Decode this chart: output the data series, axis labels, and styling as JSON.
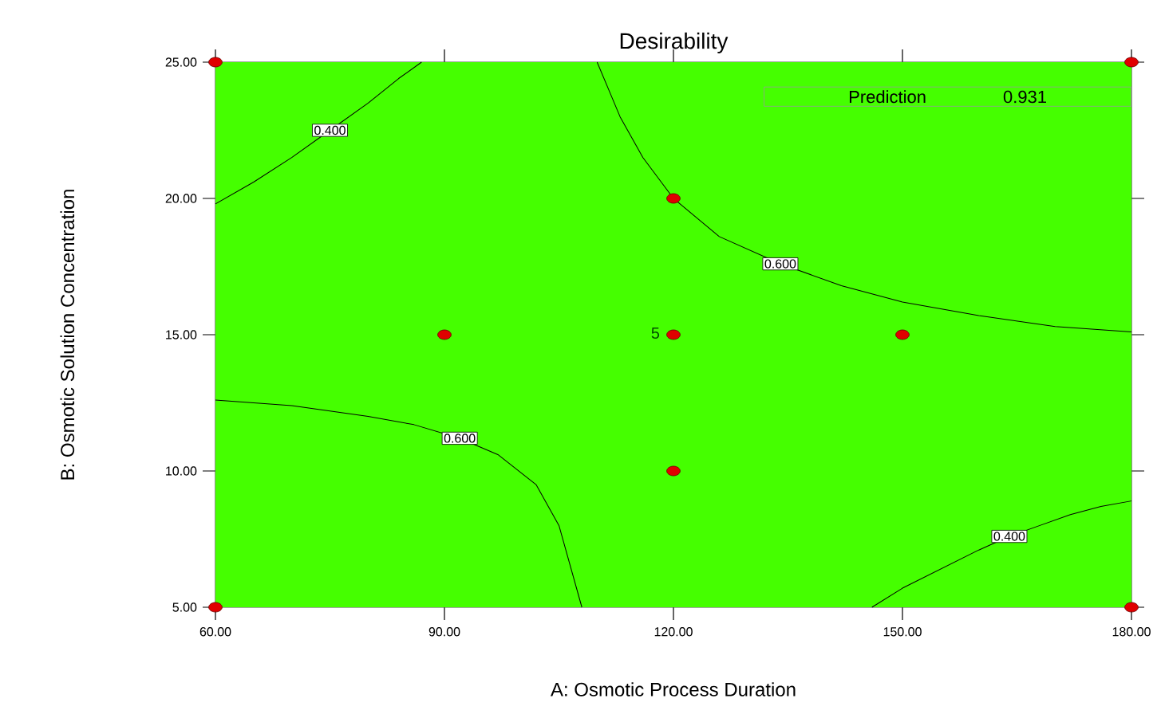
{
  "chart_data": {
    "type": "scatter",
    "title": "Desirability",
    "xlabel": "A: Osmotic Process Duration",
    "ylabel": "B: Osmotic Solution Concentration",
    "xlim": [
      60,
      180
    ],
    "ylim": [
      5,
      25
    ],
    "xticks": [
      {
        "value": 60,
        "label": "60.00"
      },
      {
        "value": 90,
        "label": "90.00"
      },
      {
        "value": 120,
        "label": "120.00"
      },
      {
        "value": 150,
        "label": "150.00"
      },
      {
        "value": 180,
        "label": "180.00"
      }
    ],
    "yticks": [
      {
        "value": 5,
        "label": "5.00"
      },
      {
        "value": 10,
        "label": "10.00"
      },
      {
        "value": 15,
        "label": "15.00"
      },
      {
        "value": 20,
        "label": "20.00"
      },
      {
        "value": 25,
        "label": "25.00"
      }
    ],
    "grid": false,
    "series": [
      {
        "type": "line",
        "name": "0.400",
        "color": "#000000",
        "x": [
          60,
          65,
          70,
          75,
          80,
          84,
          87
        ],
        "values": [
          19.8,
          20.6,
          21.5,
          22.5,
          23.5,
          24.4,
          25
        ]
      },
      {
        "type": "line",
        "name": "0.600",
        "color": "#000000",
        "x": [
          110,
          113,
          116,
          120,
          126,
          134,
          142,
          150,
          160,
          170,
          180
        ],
        "values": [
          25,
          23,
          21.5,
          20,
          18.6,
          17.6,
          16.8,
          16.2,
          15.7,
          15.3,
          15.1
        ]
      },
      {
        "type": "line",
        "name": "0.600",
        "color": "#000000",
        "x": [
          60,
          70,
          80,
          86,
          92,
          97,
          102,
          105,
          108
        ],
        "values": [
          12.6,
          12.4,
          12.0,
          11.7,
          11.2,
          10.6,
          9.5,
          8,
          5
        ]
      },
      {
        "type": "line",
        "name": "0.400",
        "color": "#000000",
        "x": [
          146,
          150,
          155,
          160,
          164,
          168,
          172,
          176,
          180
        ],
        "values": [
          5,
          5.7,
          6.4,
          7.1,
          7.6,
          8.0,
          8.4,
          8.7,
          8.9
        ]
      },
      {
        "color": "#e00000",
        "marker": "circle",
        "x": [
          60,
          180,
          90,
          120,
          120,
          120,
          150,
          60,
          180
        ],
        "values": [
          25,
          25,
          15,
          20,
          15,
          10,
          15,
          5,
          5
        ]
      }
    ],
    "annotations": [
      {
        "text": "5",
        "x": 120,
        "y": 15
      },
      "Prediction",
      "0.931"
    ]
  }
}
